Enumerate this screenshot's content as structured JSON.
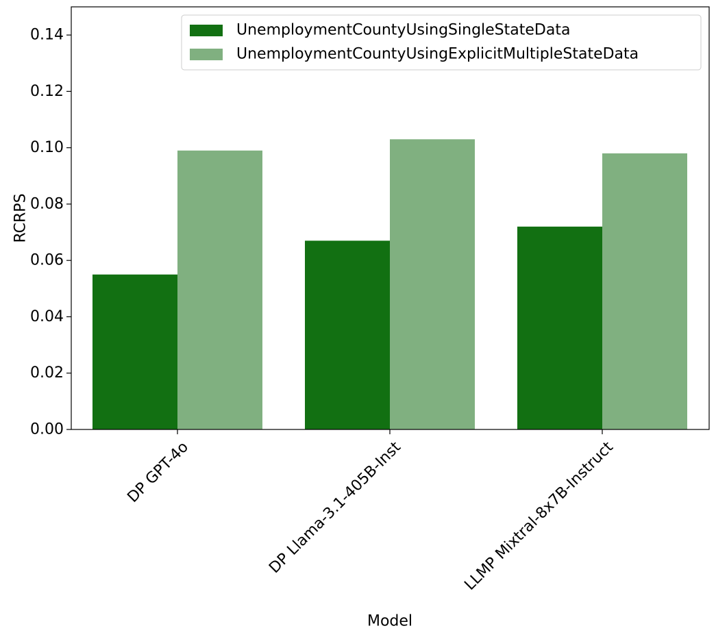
{
  "chart_data": {
    "type": "bar",
    "title": "",
    "xlabel": "Model",
    "ylabel": "RCRPS",
    "categories": [
      "DP GPT-4o",
      "DP Llama-3.1-405B-Inst",
      "LLMP Mixtral-8x7B-Instruct"
    ],
    "series": [
      {
        "name": "UnemploymentCountyUsingSingleStateData",
        "color": "#127012",
        "values": [
          0.055,
          0.067,
          0.072
        ]
      },
      {
        "name": "UnemploymentCountyUsingExplicitMultipleStateData",
        "color": "#80b080",
        "values": [
          0.099,
          0.103,
          0.098
        ]
      }
    ],
    "ylim": [
      0,
      0.15
    ],
    "yticks": [
      "0.00",
      "0.02",
      "0.04",
      "0.06",
      "0.08",
      "0.10",
      "0.12",
      "0.14"
    ],
    "grid": false,
    "legend_position": "top-right"
  }
}
